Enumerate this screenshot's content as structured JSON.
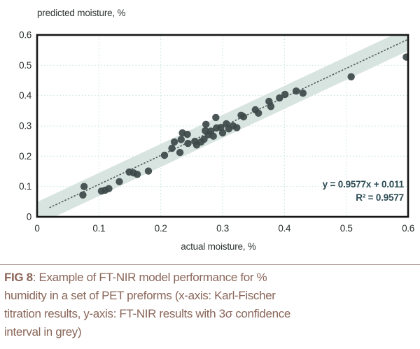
{
  "chart_data": {
    "type": "scatter",
    "ylabel": "predicted moisture, %",
    "xlabel": "actual moisture, %",
    "xlim": [
      0,
      0.6
    ],
    "ylim": [
      0,
      0.6
    ],
    "x_tick_values": [
      0,
      0.1,
      0.2,
      0.3,
      0.4,
      0.5,
      0.6
    ],
    "x_tick_labels": [
      "0",
      "0.1",
      "0.2",
      "0.3",
      "0.4",
      "0.5",
      "0.6"
    ],
    "y_tick_values": [
      0,
      0.1,
      0.2,
      0.3,
      0.4,
      0.5,
      0.6
    ],
    "y_tick_labels": [
      "0",
      "0.1",
      "0.2",
      "0.3",
      "0.4",
      "0.5",
      "0.6"
    ],
    "grid": true,
    "equation": "y = 0.9577x + 0.011",
    "r_squared": "R² = 0.9577",
    "trend": {
      "slope": 0.9577,
      "intercept": 0.011,
      "x_start": 0.02,
      "x_end": 0.6
    },
    "confidence_band_halfwidth": 0.038,
    "points": [
      [
        0.074,
        0.072
      ],
      [
        0.076,
        0.1
      ],
      [
        0.104,
        0.085
      ],
      [
        0.11,
        0.088
      ],
      [
        0.116,
        0.093
      ],
      [
        0.133,
        0.116
      ],
      [
        0.149,
        0.148
      ],
      [
        0.156,
        0.145
      ],
      [
        0.162,
        0.14
      ],
      [
        0.18,
        0.151
      ],
      [
        0.206,
        0.203
      ],
      [
        0.218,
        0.226
      ],
      [
        0.222,
        0.247
      ],
      [
        0.231,
        0.212
      ],
      [
        0.233,
        0.255
      ],
      [
        0.235,
        0.277
      ],
      [
        0.243,
        0.272
      ],
      [
        0.244,
        0.242
      ],
      [
        0.255,
        0.249
      ],
      [
        0.258,
        0.237
      ],
      [
        0.265,
        0.247
      ],
      [
        0.27,
        0.256
      ],
      [
        0.272,
        0.284
      ],
      [
        0.273,
        0.305
      ],
      [
        0.277,
        0.271
      ],
      [
        0.281,
        0.283
      ],
      [
        0.285,
        0.266
      ],
      [
        0.289,
        0.328
      ],
      [
        0.29,
        0.293
      ],
      [
        0.297,
        0.295
      ],
      [
        0.3,
        0.277
      ],
      [
        0.306,
        0.307
      ],
      [
        0.31,
        0.29
      ],
      [
        0.317,
        0.3
      ],
      [
        0.323,
        0.294
      ],
      [
        0.33,
        0.335
      ],
      [
        0.334,
        0.33
      ],
      [
        0.353,
        0.353
      ],
      [
        0.358,
        0.342
      ],
      [
        0.375,
        0.381
      ],
      [
        0.378,
        0.364
      ],
      [
        0.392,
        0.392
      ],
      [
        0.401,
        0.404
      ],
      [
        0.419,
        0.415
      ],
      [
        0.43,
        0.408
      ],
      [
        0.508,
        0.462
      ],
      [
        0.597,
        0.527
      ]
    ],
    "colors": {
      "band": "#d8e4e0",
      "point": "#3d4848",
      "trend_line": "#4f5e5c",
      "grid_line": "#c3e2e0",
      "plot_border": "#161616",
      "equation_text": "#2d4c55"
    }
  },
  "caption": {
    "fig_label": "FIG 8",
    "line1_rest": ": Example of FT-NIR model performance for %",
    "line2": "humidity in a set of PET preforms (x-axis: Karl-Fischer",
    "line3": "titration results, y-axis: FT-NIR results with 3σ confidence",
    "line4": "interval in grey)",
    "text_color": "#8a675a"
  }
}
